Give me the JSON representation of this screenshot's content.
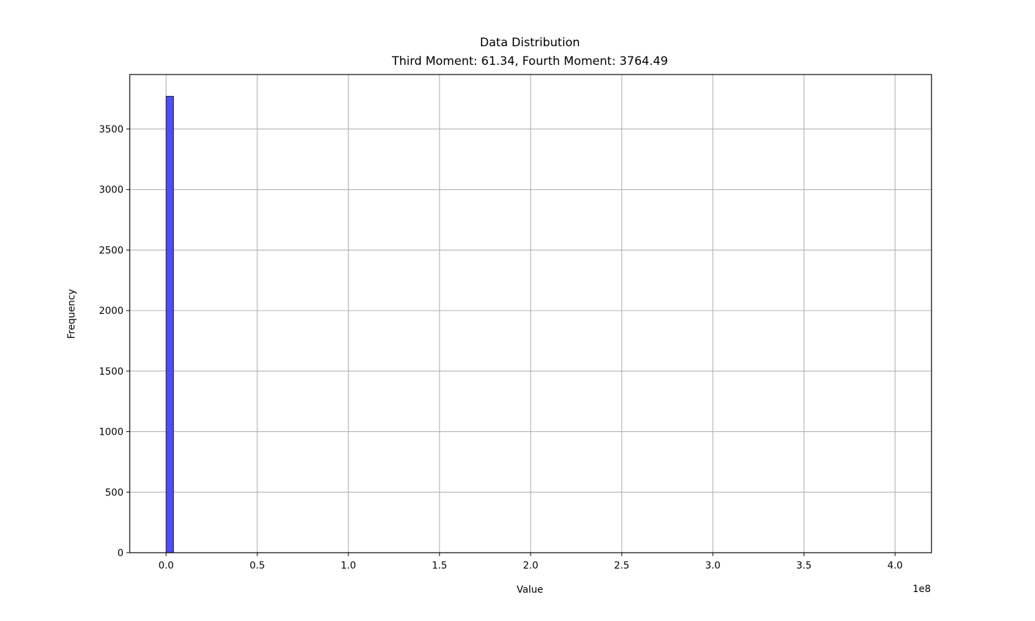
{
  "chart_data": {
    "type": "bar",
    "title": "Data Distribution",
    "subtitle": "Third Moment: 61.34, Fourth Moment: 3764.49",
    "xlabel": "Value",
    "ylabel": "Frequency",
    "x_offset_label": "1e8",
    "xlim": [
      -0.2,
      4.2
    ],
    "ylim": [
      0,
      3950
    ],
    "x_ticks": [
      0.0,
      0.5,
      1.0,
      1.5,
      2.0,
      2.5,
      3.0,
      3.5,
      4.0
    ],
    "x_tick_labels": [
      "0.0",
      "0.5",
      "1.0",
      "1.5",
      "2.0",
      "2.5",
      "3.0",
      "3.5",
      "4.0"
    ],
    "y_ticks": [
      0,
      500,
      1000,
      1500,
      2000,
      2500,
      3000,
      3500
    ],
    "y_tick_labels": [
      "0",
      "500",
      "1000",
      "1500",
      "2000",
      "2500",
      "3000",
      "3500"
    ],
    "bins": [
      {
        "x0": 0.0,
        "x1": 0.04,
        "count": 3770
      }
    ],
    "grid": true,
    "bar_color": "#4d4dff",
    "bar_edge_color": "#1a1a1a"
  }
}
